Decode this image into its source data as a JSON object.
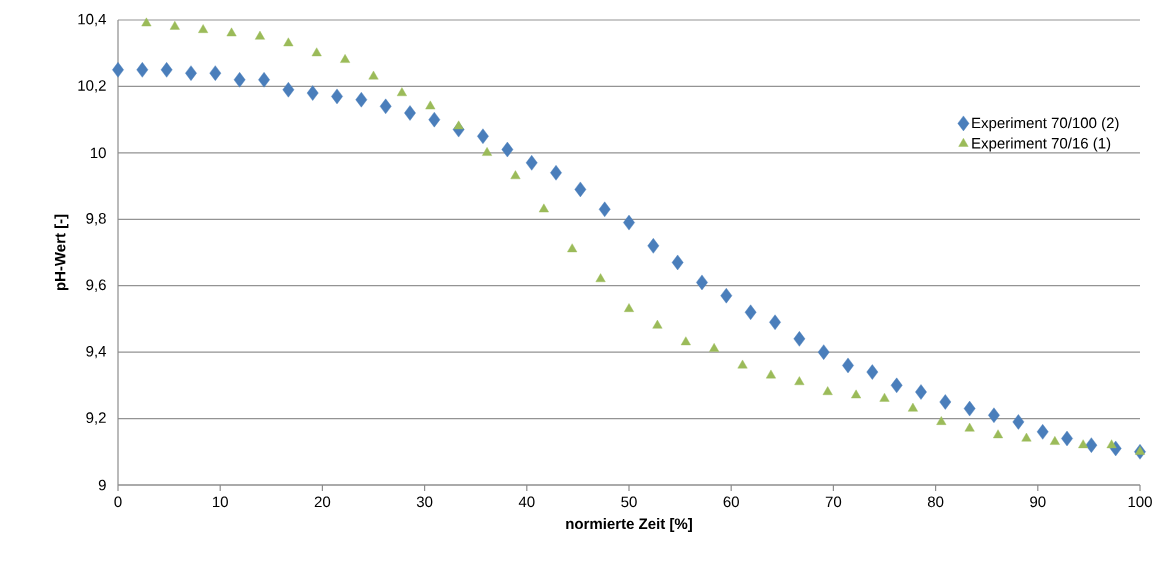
{
  "chart_data": {
    "type": "scatter",
    "xlabel": "normierte Zeit [%]",
    "ylabel": "pH-Wert [-]",
    "xlim": [
      0,
      100
    ],
    "ylim": [
      9,
      10.4
    ],
    "xticks": [
      0,
      10,
      20,
      30,
      40,
      50,
      60,
      70,
      80,
      90,
      100
    ],
    "yticks": [
      9,
      {
        "value": 9.2,
        "label": "9,2"
      },
      {
        "value": 9.4,
        "label": "9,4"
      },
      {
        "value": 9.6,
        "label": "9,6"
      },
      {
        "value": 9.8,
        "label": "9,8"
      },
      10,
      {
        "value": 10.2,
        "label": "10,2"
      },
      {
        "value": 10.4,
        "label": "10,4"
      }
    ],
    "grid": "y",
    "legend": "top right",
    "series": [
      {
        "name": "Experiment 70/100 (2)",
        "color": "#4a7ebb",
        "marker": "diamond",
        "x": [
          0,
          2.38,
          4.76,
          7.14,
          9.52,
          11.9,
          14.29,
          16.67,
          19.05,
          21.43,
          23.81,
          26.19,
          28.57,
          30.95,
          33.33,
          35.71,
          38.1,
          40.48,
          42.86,
          45.24,
          47.62,
          50,
          52.38,
          54.76,
          57.14,
          59.52,
          61.9,
          64.29,
          66.67,
          69.05,
          71.43,
          73.81,
          76.19,
          78.57,
          80.95,
          83.33,
          85.71,
          88.1,
          90.48,
          92.86,
          95.24,
          97.62,
          100
        ],
        "values": [
          10.25,
          10.25,
          10.25,
          10.24,
          10.24,
          10.22,
          10.22,
          10.19,
          10.18,
          10.17,
          10.16,
          10.14,
          10.12,
          10.1,
          10.07,
          10.05,
          10.01,
          9.97,
          9.94,
          9.89,
          9.83,
          9.79,
          9.72,
          9.67,
          9.61,
          9.57,
          9.52,
          9.49,
          9.44,
          9.4,
          9.36,
          9.34,
          9.3,
          9.28,
          9.25,
          9.23,
          9.21,
          9.19,
          9.16,
          9.14,
          9.12,
          9.11,
          9.1
        ]
      },
      {
        "name": "Experiment 70/16 (1)",
        "color": "#9bbb59",
        "marker": "triangle",
        "x": [
          2.78,
          5.56,
          8.33,
          11.11,
          13.89,
          16.67,
          19.44,
          22.22,
          25,
          27.78,
          30.56,
          33.33,
          36.11,
          38.89,
          41.67,
          44.44,
          47.22,
          50,
          52.78,
          55.56,
          58.33,
          61.11,
          63.89,
          66.67,
          69.44,
          72.22,
          75,
          77.78,
          80.56,
          83.33,
          86.11,
          88.89,
          91.67,
          94.44,
          97.22,
          100
        ],
        "values": [
          10.39,
          10.38,
          10.37,
          10.36,
          10.35,
          10.33,
          10.3,
          10.28,
          10.23,
          10.18,
          10.14,
          10.08,
          10.0,
          9.93,
          9.83,
          9.71,
          9.62,
          9.53,
          9.48,
          9.43,
          9.41,
          9.36,
          9.33,
          9.31,
          9.28,
          9.27,
          9.26,
          9.23,
          9.19,
          9.17,
          9.15,
          9.14,
          9.13,
          9.12,
          9.12,
          9.1
        ]
      }
    ]
  }
}
